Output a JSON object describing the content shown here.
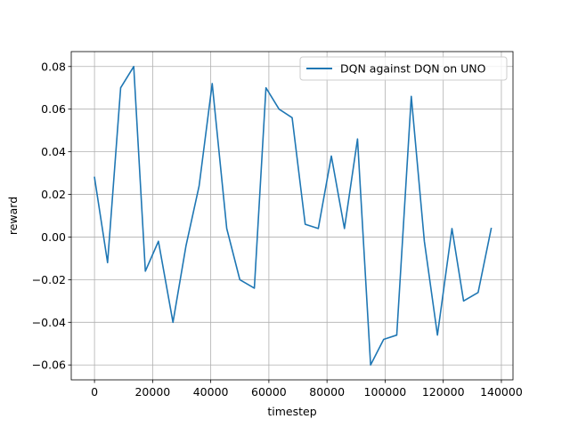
{
  "chart_data": {
    "type": "line",
    "title": "",
    "xlabel": "timestep",
    "ylabel": "reward",
    "xlim": [
      -8000,
      144000
    ],
    "ylim": [
      -0.067,
      0.087
    ],
    "xticks": [
      0,
      20000,
      40000,
      60000,
      80000,
      100000,
      120000,
      140000
    ],
    "xtick_labels": [
      "0",
      "20000",
      "40000",
      "60000",
      "80000",
      "100000",
      "120000",
      "140000"
    ],
    "yticks": [
      -0.06,
      -0.04,
      -0.02,
      0.0,
      0.02,
      0.04,
      0.06,
      0.08
    ],
    "ytick_labels": [
      "−0.06",
      "−0.04",
      "−0.02",
      "0.00",
      "0.02",
      "0.04",
      "0.06",
      "0.08"
    ],
    "grid": true,
    "legend_position": "top-right",
    "series": [
      {
        "name": "DQN against DQN on UNO",
        "color": "#1f77b4",
        "x": [
          0,
          4500,
          9000,
          13500,
          17500,
          22000,
          27000,
          31500,
          36000,
          40500,
          45500,
          50000,
          55000,
          59000,
          63500,
          68000,
          72500,
          77000,
          81500,
          86000,
          90500,
          95000,
          99500,
          104000,
          109000,
          113500,
          118000,
          123000,
          127000,
          132000,
          136500
        ],
        "y": [
          0.028,
          -0.012,
          0.07,
          0.08,
          -0.016,
          -0.002,
          -0.04,
          -0.004,
          0.024,
          0.072,
          0.004,
          -0.02,
          -0.024,
          0.07,
          0.06,
          0.056,
          0.006,
          0.004,
          0.038,
          0.004,
          0.046,
          -0.06,
          -0.048,
          -0.046,
          0.066,
          -0.002,
          -0.046,
          0.004,
          -0.03,
          -0.026,
          0.004
        ]
      }
    ]
  }
}
